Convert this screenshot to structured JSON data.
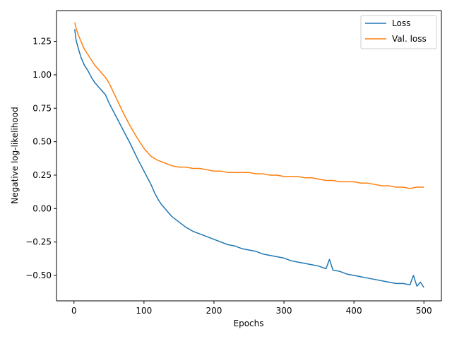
{
  "chart_data": {
    "type": "line",
    "title": "",
    "xlabel": "Epochs",
    "ylabel": "Negative log-likelihood",
    "xlim": [
      -25,
      525
    ],
    "ylim": [
      -0.69,
      1.48
    ],
    "xticks": [
      0,
      100,
      200,
      300,
      400,
      500
    ],
    "xtick_labels": [
      "0",
      "100",
      "200",
      "300",
      "400",
      "500"
    ],
    "yticks": [
      -0.5,
      -0.25,
      0.0,
      0.25,
      0.5,
      0.75,
      1.0,
      1.25
    ],
    "ytick_labels": [
      "−0.50",
      "−0.25",
      "0.00",
      "0.25",
      "0.50",
      "0.75",
      "1.00",
      "1.25"
    ],
    "grid": false,
    "legend_position": "top-right",
    "series": [
      {
        "name": "Loss",
        "color": "#1f77b4",
        "x": [
          1,
          3,
          6,
          10,
          15,
          20,
          25,
          30,
          35,
          40,
          45,
          50,
          60,
          70,
          80,
          90,
          100,
          110,
          115,
          120,
          125,
          130,
          135,
          140,
          150,
          160,
          170,
          180,
          190,
          200,
          210,
          220,
          230,
          240,
          250,
          260,
          270,
          280,
          290,
          300,
          310,
          320,
          330,
          340,
          350,
          360,
          365,
          370,
          380,
          390,
          400,
          410,
          420,
          430,
          440,
          450,
          460,
          470,
          480,
          485,
          490,
          495,
          500
        ],
        "y": [
          1.34,
          1.26,
          1.2,
          1.13,
          1.07,
          1.03,
          0.98,
          0.94,
          0.91,
          0.88,
          0.85,
          0.79,
          0.69,
          0.59,
          0.49,
          0.38,
          0.28,
          0.18,
          0.12,
          0.07,
          0.03,
          0.0,
          -0.03,
          -0.06,
          -0.1,
          -0.14,
          -0.17,
          -0.19,
          -0.21,
          -0.23,
          -0.25,
          -0.27,
          -0.28,
          -0.3,
          -0.31,
          -0.32,
          -0.34,
          -0.35,
          -0.36,
          -0.37,
          -0.39,
          -0.4,
          -0.41,
          -0.42,
          -0.43,
          -0.45,
          -0.38,
          -0.46,
          -0.47,
          -0.49,
          -0.5,
          -0.51,
          -0.52,
          -0.53,
          -0.54,
          -0.55,
          -0.56,
          -0.56,
          -0.57,
          -0.5,
          -0.58,
          -0.55,
          -0.59
        ]
      },
      {
        "name": "Val. loss",
        "color": "#ff7f0e",
        "x": [
          1,
          3,
          6,
          10,
          15,
          20,
          25,
          30,
          35,
          40,
          45,
          50,
          60,
          70,
          80,
          90,
          100,
          110,
          120,
          130,
          140,
          150,
          160,
          170,
          180,
          190,
          200,
          210,
          220,
          230,
          240,
          250,
          260,
          270,
          280,
          290,
          300,
          310,
          320,
          330,
          340,
          350,
          360,
          370,
          380,
          390,
          400,
          410,
          420,
          430,
          440,
          450,
          460,
          470,
          480,
          490,
          500
        ],
        "y": [
          1.39,
          1.35,
          1.3,
          1.25,
          1.19,
          1.15,
          1.11,
          1.07,
          1.04,
          1.01,
          0.98,
          0.94,
          0.83,
          0.72,
          0.62,
          0.53,
          0.45,
          0.39,
          0.36,
          0.34,
          0.32,
          0.31,
          0.31,
          0.3,
          0.3,
          0.29,
          0.28,
          0.28,
          0.27,
          0.27,
          0.27,
          0.27,
          0.26,
          0.26,
          0.25,
          0.25,
          0.24,
          0.24,
          0.24,
          0.23,
          0.23,
          0.22,
          0.21,
          0.21,
          0.2,
          0.2,
          0.2,
          0.19,
          0.19,
          0.18,
          0.17,
          0.17,
          0.16,
          0.16,
          0.15,
          0.16,
          0.16
        ]
      }
    ]
  }
}
